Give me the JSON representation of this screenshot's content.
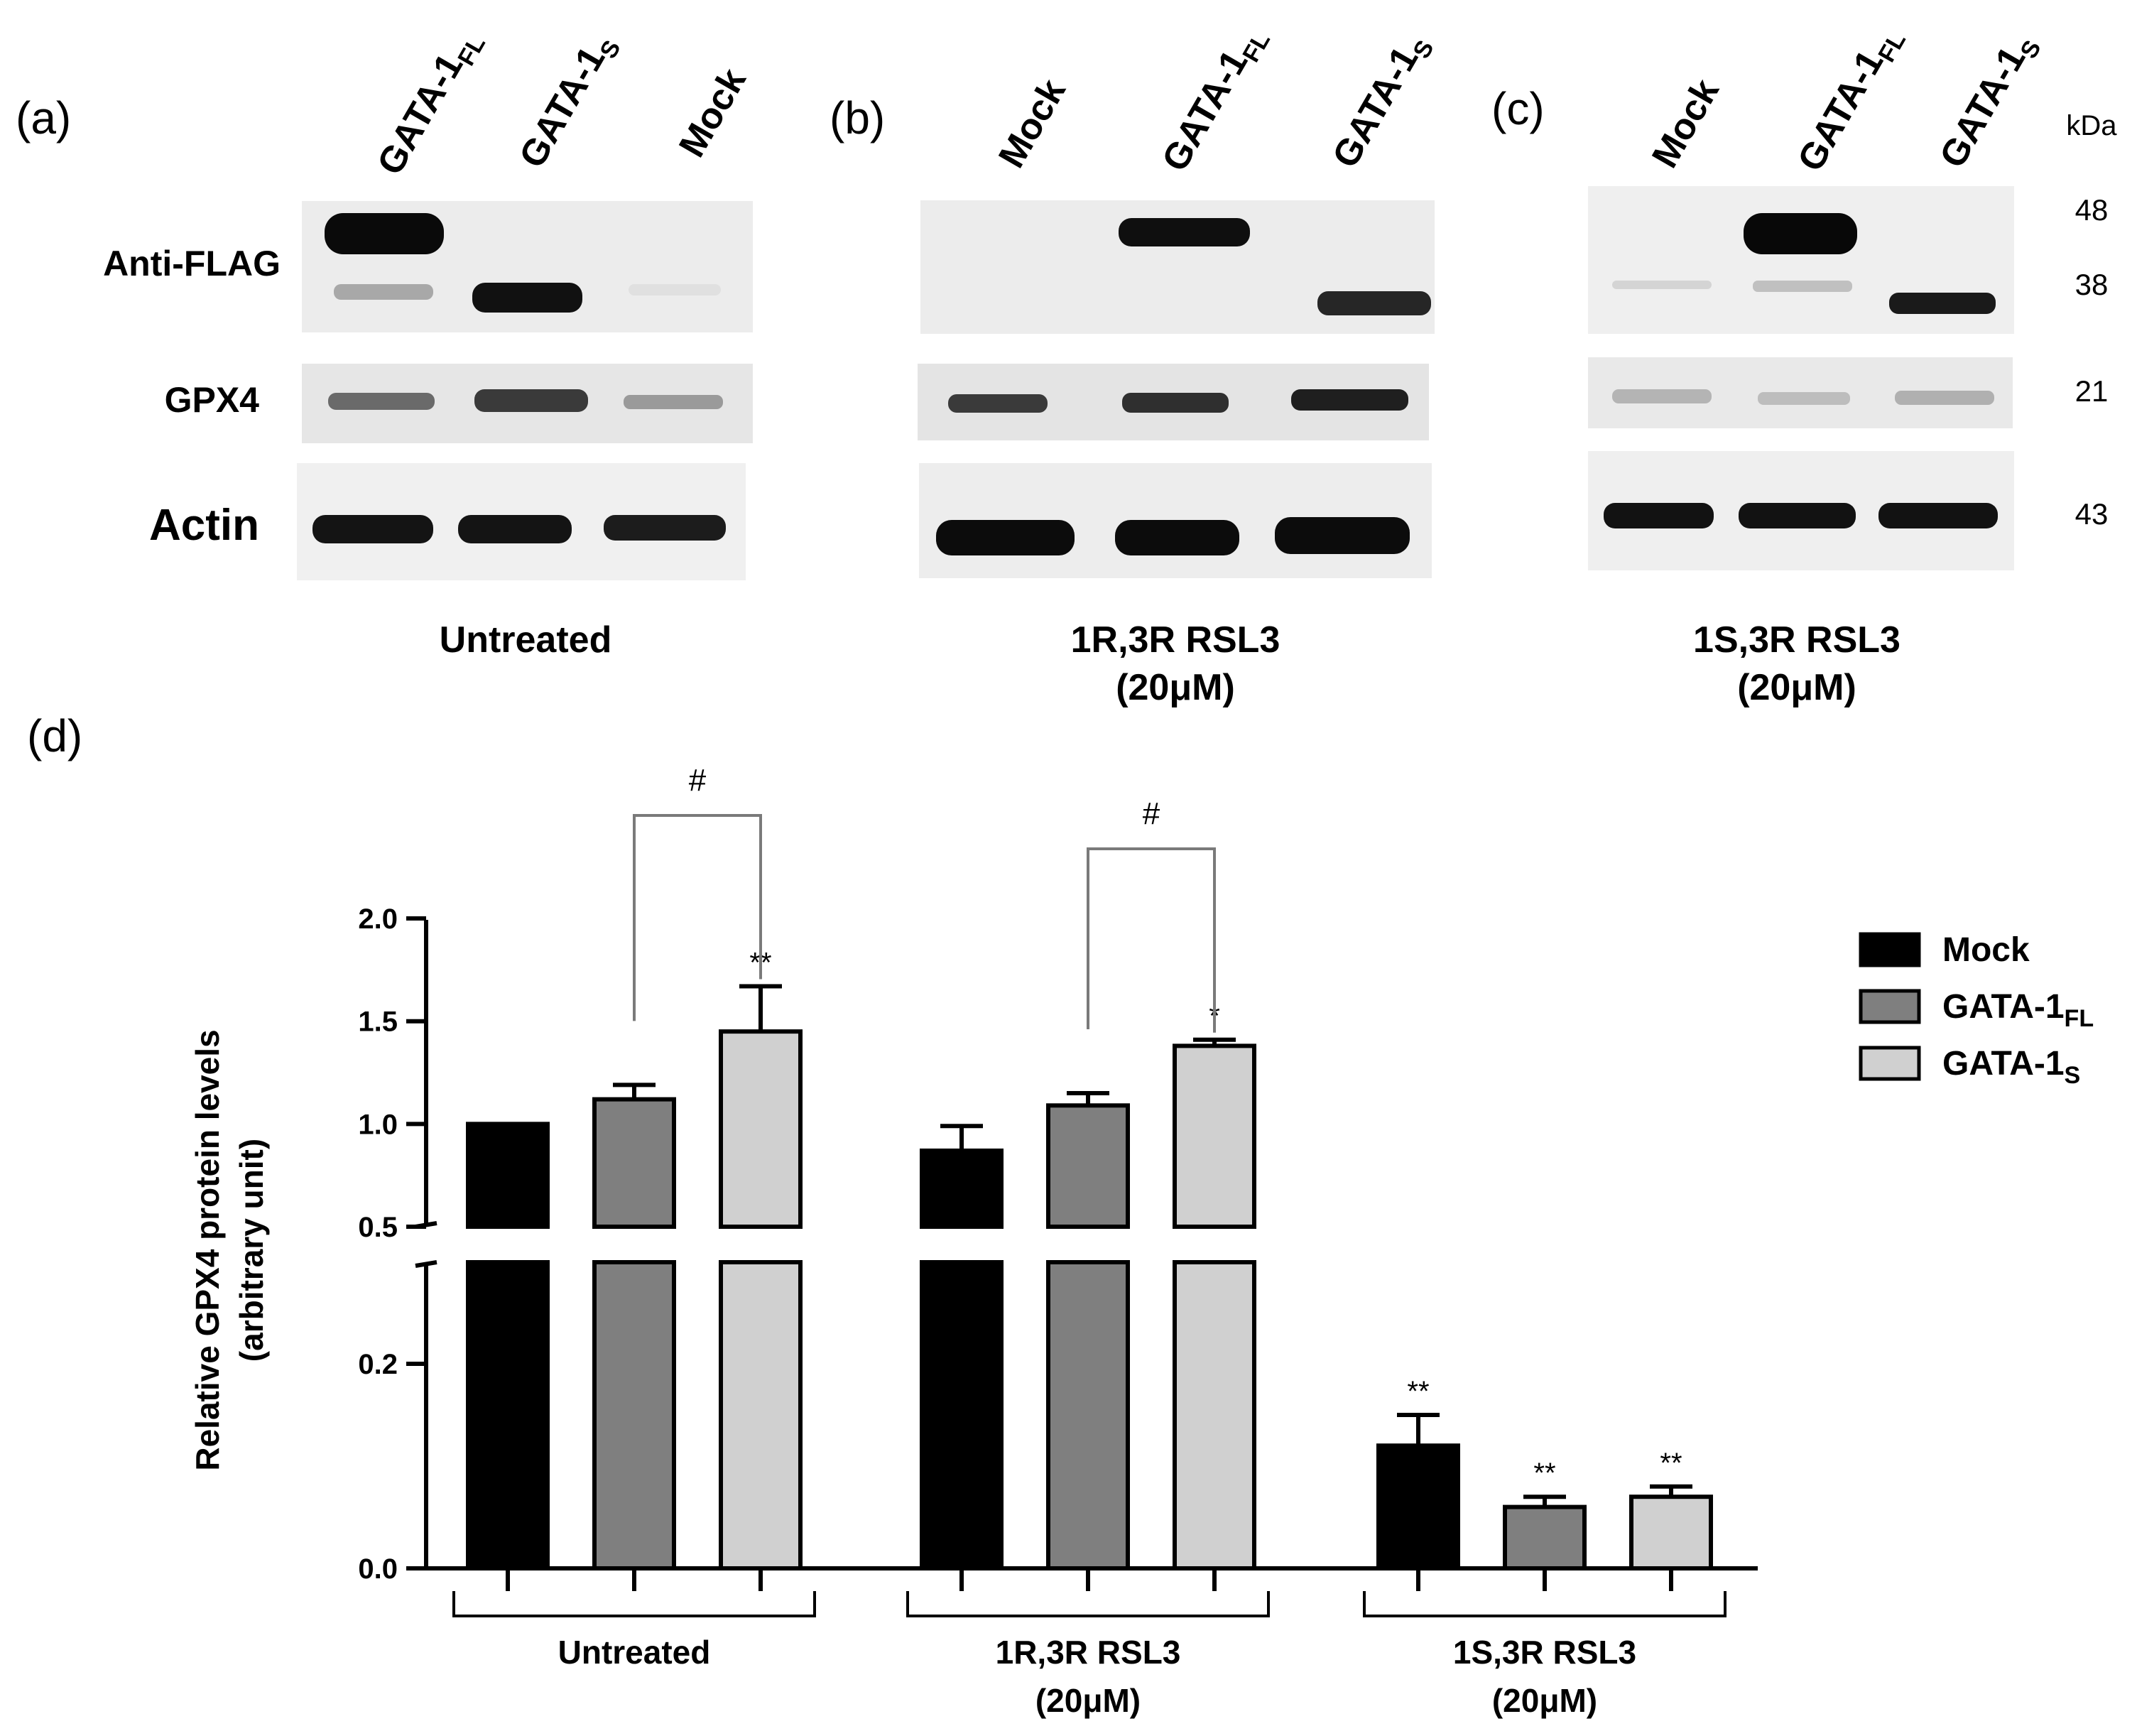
{
  "panels": {
    "a": {
      "letter": "(a)",
      "lanes": [
        {
          "main": "GATA-1",
          "sub": "FL"
        },
        {
          "main": "GATA-1",
          "sub": "S"
        },
        {
          "main": "Mock",
          "sub": ""
        }
      ],
      "condition": "Untreated"
    },
    "b": {
      "letter": "(b)",
      "lanes": [
        {
          "main": "Mock",
          "sub": ""
        },
        {
          "main": "GATA-1",
          "sub": "FL"
        },
        {
          "main": "GATA-1",
          "sub": "S"
        }
      ],
      "condition_line1": "1R,3R RSL3",
      "condition_line2": "(20μM)"
    },
    "c": {
      "letter": "(c)",
      "lanes": [
        {
          "main": "Mock",
          "sub": ""
        },
        {
          "main": "GATA-1",
          "sub": "FL"
        },
        {
          "main": "GATA-1",
          "sub": "S"
        }
      ],
      "condition_line1": "1S,3R RSL3",
      "condition_line2": "(20μM)"
    },
    "d": {
      "letter": "(d)"
    }
  },
  "blot_rows": [
    "Anti-FLAG",
    "GPX4",
    "Actin"
  ],
  "kda": {
    "header": "kDa",
    "markers": [
      "48",
      "38",
      "21",
      "43"
    ]
  },
  "chart_data": {
    "type": "bar",
    "title": "",
    "ylabel_line1": "Relative GPX4 protein levels",
    "ylabel_line2": "(arbitrary unit)",
    "y_axis_break": [
      0.3,
      0.5
    ],
    "y_ticks": [
      "2.0",
      "1.5",
      "1.0",
      "0.5",
      "0.2",
      "0.0"
    ],
    "categories": [
      {
        "line1": "Untreated",
        "line2": ""
      },
      {
        "line1": "1R,3R RSL3",
        "line2": "(20μM)"
      },
      {
        "line1": "1S,3R RSL3",
        "line2": "(20μM)"
      }
    ],
    "series": [
      {
        "name": "Mock",
        "name_sub": "",
        "color": "#000000",
        "values": [
          1.0,
          0.87,
          0.12
        ],
        "errors": [
          0.0,
          0.12,
          0.03
        ],
        "stars": [
          "",
          "",
          "**"
        ]
      },
      {
        "name": "GATA-1",
        "name_sub": "FL",
        "color": "#7f7f7f",
        "values": [
          1.12,
          1.09,
          0.06
        ],
        "errors": [
          0.07,
          0.06,
          0.01
        ],
        "stars": [
          "",
          "",
          "**"
        ]
      },
      {
        "name": "GATA-1",
        "name_sub": "S",
        "color": "#d0d0d0",
        "values": [
          1.45,
          1.38,
          0.07
        ],
        "errors": [
          0.22,
          0.03,
          0.01
        ],
        "stars": [
          "**",
          "*",
          "**"
        ]
      }
    ],
    "brackets": [
      {
        "group": 0,
        "label": "#"
      },
      {
        "group": 1,
        "label": "#"
      }
    ],
    "legend_position": "right"
  }
}
